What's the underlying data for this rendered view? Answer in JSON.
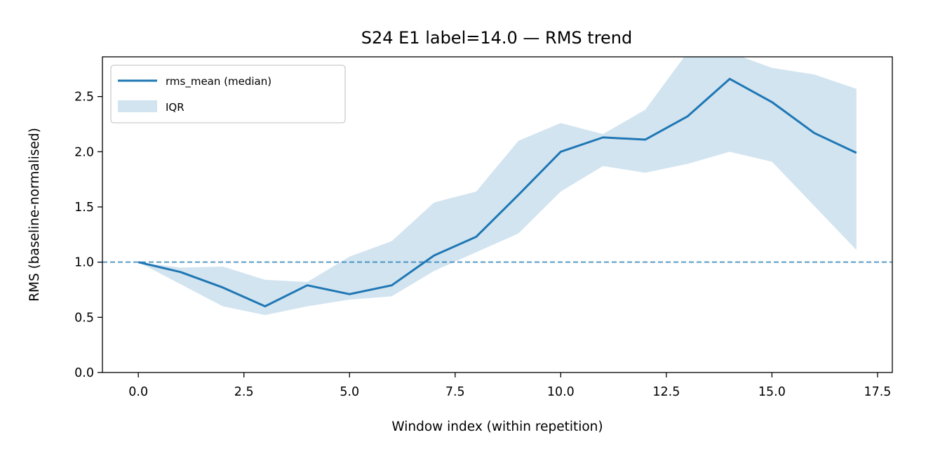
{
  "chart_data": {
    "type": "line",
    "title": "S24 E1 label=14.0 — RMS trend",
    "xlabel": "Window index (within repetition)",
    "ylabel": "RMS (baseline-normalised)",
    "xlim": [
      -0.85,
      17.85
    ],
    "ylim": [
      0,
      2.86
    ],
    "x_ticks": [
      "0.0",
      "2.5",
      "5.0",
      "7.5",
      "10.0",
      "12.5",
      "15.0",
      "17.5"
    ],
    "y_ticks": [
      "0.0",
      "0.5",
      "1.0",
      "1.5",
      "2.0",
      "2.5"
    ],
    "x": [
      0,
      1,
      2,
      3,
      4,
      5,
      6,
      7,
      8,
      9,
      10,
      11,
      12,
      13,
      14,
      15,
      16,
      17
    ],
    "series": [
      {
        "name": "rms_mean (median)",
        "color": "#1f77b4",
        "values": [
          1.0,
          0.91,
          0.77,
          0.6,
          0.79,
          0.71,
          0.79,
          1.06,
          1.23,
          1.61,
          2.0,
          2.13,
          2.11,
          2.32,
          2.66,
          2.45,
          2.17,
          1.99
        ]
      }
    ],
    "band": {
      "name": "IQR",
      "color": "#1f77b4",
      "opacity": 0.2,
      "lower": [
        1.0,
        0.8,
        0.6,
        0.52,
        0.6,
        0.66,
        0.69,
        0.92,
        1.09,
        1.26,
        1.64,
        1.87,
        1.81,
        1.89,
        2.0,
        1.91,
        1.51,
        1.11
      ],
      "upper": [
        1.0,
        0.95,
        0.96,
        0.84,
        0.82,
        1.05,
        1.19,
        1.54,
        1.64,
        2.1,
        2.26,
        2.16,
        2.38,
        2.9,
        2.9,
        2.76,
        2.7,
        2.57
      ]
    },
    "reference_line": {
      "y": 1.0,
      "style": "dashed",
      "color": "#1f77b4"
    },
    "legend_position": "top-left",
    "grid": false
  }
}
